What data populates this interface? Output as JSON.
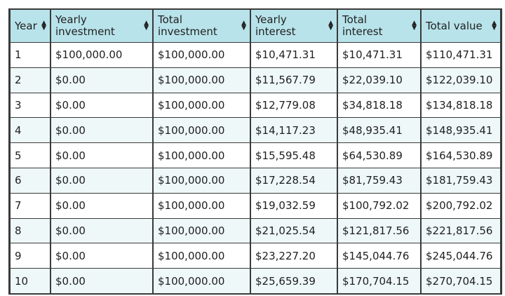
{
  "table": {
    "columns": [
      {
        "key": "year",
        "label_line1": "Year",
        "label_line2": ""
      },
      {
        "key": "yearly_investment",
        "label_line1": "Yearly",
        "label_line2": "investment"
      },
      {
        "key": "total_investment",
        "label_line1": "Total",
        "label_line2": "investment"
      },
      {
        "key": "yearly_interest",
        "label_line1": "Yearly",
        "label_line2": "interest"
      },
      {
        "key": "total_interest",
        "label_line1": "Total",
        "label_line2": "interest"
      },
      {
        "key": "total_value",
        "label_line1": "Total value",
        "label_line2": ""
      }
    ],
    "sort_icon": "sort-updown-icon",
    "rows": [
      [
        "1",
        "$100,000.00",
        "$100,000.00",
        "$10,471.31",
        "$10,471.31",
        "$110,471.31"
      ],
      [
        "2",
        "$0.00",
        "$100,000.00",
        "$11,567.79",
        "$22,039.10",
        "$122,039.10"
      ],
      [
        "3",
        "$0.00",
        "$100,000.00",
        "$12,779.08",
        "$34,818.18",
        "$134,818.18"
      ],
      [
        "4",
        "$0.00",
        "$100,000.00",
        "$14,117.23",
        "$48,935.41",
        "$148,935.41"
      ],
      [
        "5",
        "$0.00",
        "$100,000.00",
        "$15,595.48",
        "$64,530.89",
        "$164,530.89"
      ],
      [
        "6",
        "$0.00",
        "$100,000.00",
        "$17,228.54",
        "$81,759.43",
        "$181,759.43"
      ],
      [
        "7",
        "$0.00",
        "$100,000.00",
        "$19,032.59",
        "$100,792.02",
        "$200,792.02"
      ],
      [
        "8",
        "$0.00",
        "$100,000.00",
        "$21,025.54",
        "$121,817.56",
        "$221,817.56"
      ],
      [
        "9",
        "$0.00",
        "$100,000.00",
        "$23,227.20",
        "$145,044.76",
        "$245,044.76"
      ],
      [
        "10",
        "$0.00",
        "$100,000.00",
        "$25,659.39",
        "$170,704.15",
        "$270,704.15"
      ]
    ]
  },
  "colors": {
    "header_bg": "#b8e3ea",
    "row_alt_bg": "#eef8f9",
    "border": "#3a3a3a"
  }
}
